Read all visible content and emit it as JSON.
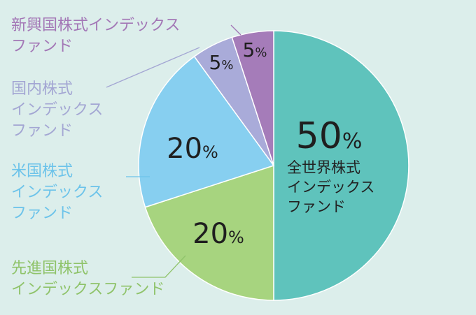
{
  "chart_data": {
    "type": "pie",
    "title": "",
    "start_angle_deg": 0,
    "direction": "clockwise",
    "legend": "none",
    "slices": [
      {
        "label": "全世界株式インデックスファンド",
        "label_lines": [
          "全世界株式",
          "インデックス",
          "ファンド"
        ],
        "value": 50,
        "value_text": "50",
        "color": "#5fc3bc",
        "label_color": "#222222",
        "label_placement": "inside"
      },
      {
        "label": "先進国株式インデックスファンド",
        "label_lines": [
          "先進国株式",
          "インデックスファンド"
        ],
        "value": 20,
        "value_text": "20",
        "color": "#a7d47f",
        "label_color": "#8fc36a",
        "label_placement": "outside-left"
      },
      {
        "label": "米国株式インデックスファンド",
        "label_lines": [
          "米国株式",
          "インデックス",
          "ファンド"
        ],
        "value": 20,
        "value_text": "20",
        "color": "#87cff0",
        "label_color": "#6cc3ea",
        "label_placement": "outside-left"
      },
      {
        "label": "国内株式インデックスファンド",
        "label_lines": [
          "国内株式",
          "インデックス",
          "ファンド"
        ],
        "value": 5,
        "value_text": "5",
        "color": "#a9abd9",
        "label_color": "#a3a6d3",
        "label_placement": "outside-left"
      },
      {
        "label": "新興国株式インデックスファンド",
        "label_lines": [
          "新興国株式インデックス",
          "ファンド"
        ],
        "value": 5,
        "value_text": "5",
        "color": "#a57cb9",
        "label_color": "#a377b6",
        "label_placement": "outside-left"
      }
    ],
    "percent_sign": "%"
  }
}
